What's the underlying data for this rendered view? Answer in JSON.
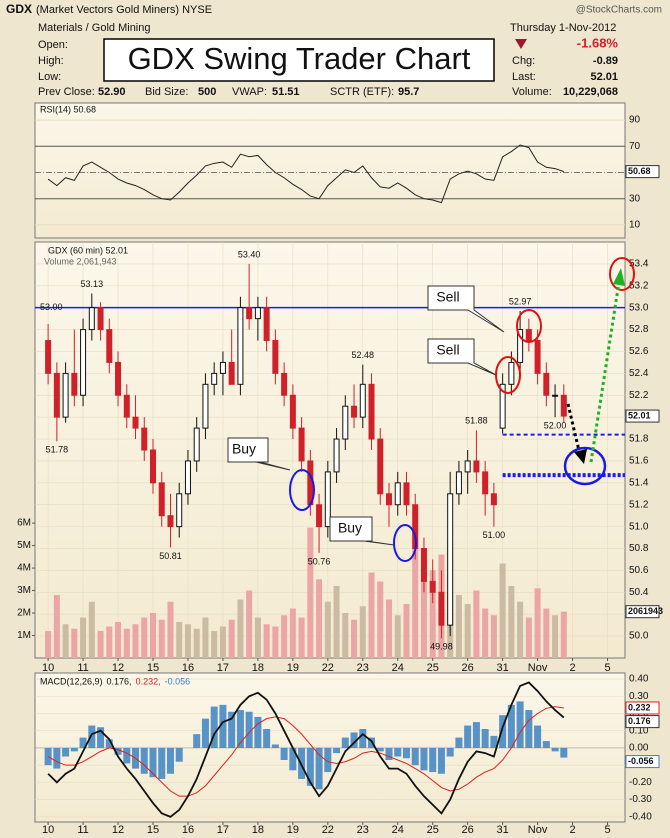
{
  "chart_data": {
    "type": "candlestick",
    "title": "GDX Swing Trader Chart",
    "header": {
      "ticker": "GDX",
      "name": "(Market Vectors Gold Miners) NYSE",
      "source": "@StockCharts.com",
      "sector": "Materials / Gold Mining",
      "date": "Thursday  1-Nov-2012",
      "change_pct": "-1.68%",
      "left_fields": [
        "Open:",
        "High:",
        "Low:"
      ],
      "right_fields": [
        [
          "Chg:",
          "-0.89"
        ],
        [
          "Last:",
          "52.01"
        ],
        [
          "Volume:",
          "10,229,068"
        ]
      ],
      "bottom_fields": [
        [
          "Prev Close:",
          "52.90"
        ],
        [
          "Bid Size:",
          "500"
        ],
        [
          "VWAP:",
          "51.51"
        ],
        [
          "SCTR (ETF):",
          "95.7"
        ]
      ]
    },
    "price_legend": "GDX (60 min) 52.01",
    "x": [
      0,
      1,
      2,
      3,
      4,
      5,
      6,
      7,
      8,
      9,
      10,
      11,
      12,
      13,
      14,
      15,
      16,
      17,
      18,
      19,
      20,
      21,
      22,
      23,
      24,
      25,
      26,
      27,
      28,
      29,
      30,
      31,
      32,
      33,
      34,
      35,
      36,
      37,
      38,
      39,
      40,
      41,
      42,
      43,
      44,
      45,
      46,
      47,
      48,
      49,
      50,
      51,
      52,
      53,
      54,
      55,
      56,
      57,
      58,
      59
    ],
    "xlim": [
      -1.5,
      66
    ],
    "xticks": [
      {
        "value": 0,
        "label": "10"
      },
      {
        "value": 4,
        "label": "11"
      },
      {
        "value": 8,
        "label": "12"
      },
      {
        "value": 12,
        "label": "15"
      },
      {
        "value": 16,
        "label": "16"
      },
      {
        "value": 20,
        "label": "17"
      },
      {
        "value": 24,
        "label": "18"
      },
      {
        "value": 28,
        "label": "19"
      },
      {
        "value": 32,
        "label": "22"
      },
      {
        "value": 36,
        "label": "23"
      },
      {
        "value": 40,
        "label": "24"
      },
      {
        "value": 44,
        "label": "25"
      },
      {
        "value": 48,
        "label": "26"
      },
      {
        "value": 52,
        "label": "31"
      },
      {
        "value": 56,
        "label": "Nov"
      },
      {
        "value": 60,
        "label": "2"
      },
      {
        "value": 64,
        "label": "5"
      }
    ],
    "open": [
      52.7,
      52.4,
      52.0,
      52.4,
      52.2,
      52.8,
      53.0,
      52.8,
      52.5,
      52.2,
      52.0,
      51.9,
      51.7,
      51.4,
      51.1,
      51.0,
      51.3,
      51.6,
      51.9,
      52.3,
      52.4,
      52.5,
      52.3,
      53.0,
      52.9,
      53.0,
      52.7,
      52.4,
      52.2,
      51.9,
      51.6,
      51.2,
      51.0,
      51.5,
      51.8,
      52.1,
      52.0,
      52.3,
      51.8,
      51.3,
      51.2,
      51.4,
      51.2,
      50.8,
      50.5,
      50.4,
      50.1,
      51.3,
      51.5,
      51.6,
      51.5,
      51.3,
      51.9,
      52.3,
      52.5,
      52.8,
      52.7,
      52.4,
      52.2,
      52.2
    ],
    "high": [
      52.85,
      52.5,
      52.5,
      52.8,
      52.9,
      53.13,
      53.05,
      52.9,
      52.6,
      52.3,
      52.2,
      52.0,
      51.8,
      51.5,
      51.3,
      51.4,
      51.7,
      52.0,
      52.4,
      52.5,
      52.6,
      52.8,
      53.1,
      53.4,
      53.1,
      53.1,
      52.8,
      52.5,
      52.3,
      52.0,
      51.7,
      51.3,
      51.6,
      51.9,
      52.2,
      52.3,
      52.48,
      52.4,
      51.9,
      51.4,
      51.5,
      51.5,
      51.3,
      50.9,
      50.7,
      50.6,
      51.5,
      51.6,
      51.7,
      51.88,
      51.6,
      51.4,
      52.4,
      52.6,
      52.97,
      52.9,
      52.8,
      52.5,
      52.3,
      52.3
    ],
    "low": [
      52.3,
      51.78,
      51.95,
      52.1,
      52.1,
      52.7,
      52.7,
      52.4,
      52.1,
      51.9,
      51.8,
      51.6,
      51.3,
      51.0,
      50.81,
      50.9,
      51.2,
      51.5,
      51.8,
      52.2,
      52.2,
      52.3,
      52.2,
      52.8,
      52.7,
      52.6,
      52.3,
      52.1,
      51.8,
      51.5,
      51.1,
      50.76,
      50.9,
      51.4,
      51.7,
      51.9,
      51.9,
      51.7,
      51.2,
      51.0,
      51.1,
      51.1,
      50.7,
      50.4,
      50.3,
      49.98,
      50.0,
      51.2,
      51.3,
      51.4,
      51.1,
      51.0,
      51.85,
      52.2,
      52.4,
      52.6,
      52.3,
      52.1,
      52.0,
      51.95
    ],
    "close": [
      52.4,
      52.0,
      52.4,
      52.2,
      52.8,
      53.0,
      52.8,
      52.5,
      52.2,
      52.0,
      51.9,
      51.7,
      51.4,
      51.1,
      51.0,
      51.3,
      51.6,
      51.9,
      52.3,
      52.4,
      52.5,
      52.3,
      53.0,
      52.9,
      53.0,
      52.7,
      52.4,
      52.2,
      51.9,
      51.6,
      51.2,
      51.0,
      51.5,
      51.8,
      52.1,
      52.0,
      52.3,
      51.8,
      51.3,
      51.2,
      51.4,
      51.2,
      50.8,
      50.5,
      50.4,
      50.1,
      51.3,
      51.5,
      51.6,
      51.5,
      51.3,
      51.2,
      52.3,
      52.5,
      52.8,
      52.7,
      52.4,
      52.2,
      52.2,
      52.01
    ],
    "colors": {
      "up": "#111111",
      "down": "#d0202a"
    },
    "ylim": [
      49.8,
      53.6
    ],
    "yticks": [
      {
        "value": 50,
        "label": "50.0"
      },
      {
        "value": 50.2,
        "label": "50.2"
      },
      {
        "value": 50.4,
        "label": "50.4"
      },
      {
        "value": 50.6,
        "label": "50.6"
      },
      {
        "value": 50.8,
        "label": "50.8"
      },
      {
        "value": 51,
        "label": "51.0"
      },
      {
        "value": 51.2,
        "label": "51.2"
      },
      {
        "value": 51.4,
        "label": "51.4"
      },
      {
        "value": 51.6,
        "label": "51.6"
      },
      {
        "value": 51.8,
        "label": "51.8"
      },
      {
        "value": 52,
        "label": "52.0"
      },
      {
        "value": 52.2,
        "label": "52.2"
      },
      {
        "value": 52.4,
        "label": "52.4"
      },
      {
        "value": 52.6,
        "label": "52.6"
      },
      {
        "value": 52.8,
        "label": "52.8"
      },
      {
        "value": 53,
        "label": "53.0"
      },
      {
        "value": 53.2,
        "label": "53.2"
      },
      {
        "value": 53.4,
        "label": "53.4"
      }
    ],
    "grid": true,
    "resistance": {
      "value": 53,
      "label": "53.00",
      "color": "#1a1aff"
    },
    "support_lines": [
      {
        "value": 51.84,
        "from": 52,
        "style": "dashed",
        "color": "#1a1aff"
      },
      {
        "value": 51.47,
        "from": 52,
        "style": "dotted",
        "color": "#1a1aff"
      }
    ],
    "price_labels": [
      {
        "x": 5,
        "value": 53.13,
        "position": "above"
      },
      {
        "x": 23,
        "value": 53.4,
        "label": "53.40",
        "position": "above"
      },
      {
        "x": 1,
        "value": 51.78,
        "position": "below"
      },
      {
        "x": 14,
        "value": 50.81,
        "position": "below"
      },
      {
        "x": 36,
        "value": 52.48,
        "position": "above"
      },
      {
        "x": 31,
        "value": 50.76,
        "position": "below"
      },
      {
        "x": 45,
        "value": 49.98,
        "position": "below"
      },
      {
        "x": 49,
        "value": 51.88,
        "position": "above"
      },
      {
        "x": 51,
        "value": 51,
        "label": "51.00",
        "position": "below"
      },
      {
        "x": 58,
        "value": 52,
        "label": "52.00",
        "position": "below"
      },
      {
        "x": 54,
        "value": 52.97,
        "position": "above"
      }
    ],
    "annotations": [
      "Buy",
      "Buy",
      "Sell",
      "Sell"
    ],
    "volume": {
      "legend": "Volume 2,061,943",
      "last_label": "2061943",
      "up_color": "#cbbba3",
      "down_color": "#eba5a5",
      "values": [
        1.2,
        2.8,
        1.5,
        1.3,
        1.8,
        2.5,
        1.2,
        1.4,
        1.6,
        1.3,
        1.5,
        1.8,
        2.0,
        1.7,
        2.5,
        1.6,
        1.5,
        1.3,
        1.8,
        1.2,
        1.4,
        1.7,
        2.6,
        3.0,
        1.8,
        1.5,
        1.4,
        1.9,
        2.2,
        1.8,
        5.8,
        3.5,
        2.5,
        3.2,
        2.0,
        1.7,
        2.3,
        3.8,
        3.4,
        2.6,
        1.9,
        2.4,
        5.8,
        4.3,
        3.9,
        4.6,
        5.2,
        2.8,
        2.4,
        3.0,
        2.2,
        1.9,
        4.2,
        3.2,
        2.5,
        1.8,
        3.1,
        2.2,
        1.9,
        2.06
      ],
      "ylim": [
        0,
        18.5
      ],
      "yticks": [
        {
          "value": 1,
          "label": "1M"
        },
        {
          "value": 2,
          "label": "2M"
        },
        {
          "value": 3,
          "label": "3M"
        },
        {
          "value": 4,
          "label": "4M"
        },
        {
          "value": 5,
          "label": "5M"
        },
        {
          "value": 6,
          "label": "6M"
        }
      ]
    },
    "rsi": {
      "legend": "RSI(14) 50.68",
      "color": "#222222",
      "values": [
        45,
        40,
        46,
        44,
        55,
        58,
        54,
        50,
        45,
        42,
        40,
        37,
        33,
        30,
        29,
        35,
        42,
        48,
        55,
        57,
        58,
        54,
        64,
        62,
        63,
        56,
        50,
        46,
        41,
        37,
        32,
        30,
        40,
        46,
        52,
        50,
        55,
        46,
        39,
        38,
        42,
        38,
        33,
        30,
        29,
        27,
        45,
        49,
        51,
        49,
        45,
        44,
        62,
        66,
        71,
        69,
        58,
        54,
        53,
        50.68
      ],
      "ylim": [
        0,
        100
      ],
      "yticks": [
        10,
        30,
        50,
        70,
        90
      ]
    },
    "macd": {
      "legend": [
        "MACD(12,26,9)",
        "0.176,",
        "0.232,",
        "-0.056"
      ],
      "colors": [
        "#111111",
        "#e0201e",
        "#3c82c4"
      ],
      "macd": [
        -0.15,
        -0.2,
        -0.15,
        -0.12,
        -0.02,
        0.08,
        0.1,
        0.05,
        -0.05,
        -0.12,
        -0.18,
        -0.25,
        -0.32,
        -0.38,
        -0.4,
        -0.36,
        -0.28,
        -0.18,
        -0.05,
        0.08,
        0.15,
        0.17,
        0.25,
        0.3,
        0.32,
        0.28,
        0.2,
        0.1,
        0.0,
        -0.1,
        -0.2,
        -0.28,
        -0.22,
        -0.12,
        -0.02,
        0.03,
        0.08,
        0.04,
        -0.05,
        -0.12,
        -0.12,
        -0.15,
        -0.22,
        -0.28,
        -0.33,
        -0.38,
        -0.3,
        -0.18,
        -0.08,
        -0.02,
        -0.03,
        -0.05,
        0.12,
        0.25,
        0.36,
        0.38,
        0.33,
        0.27,
        0.22,
        0.176
      ],
      "signal": [
        -0.05,
        -0.08,
        -0.1,
        -0.1,
        -0.08,
        -0.05,
        -0.02,
        0.0,
        -0.01,
        -0.03,
        -0.06,
        -0.1,
        -0.15,
        -0.2,
        -0.25,
        -0.28,
        -0.28,
        -0.26,
        -0.22,
        -0.16,
        -0.1,
        -0.04,
        0.03,
        0.09,
        0.14,
        0.17,
        0.18,
        0.17,
        0.13,
        0.08,
        0.02,
        -0.04,
        -0.08,
        -0.09,
        -0.08,
        -0.06,
        -0.03,
        -0.02,
        -0.03,
        -0.05,
        -0.07,
        -0.09,
        -0.12,
        -0.15,
        -0.19,
        -0.23,
        -0.25,
        -0.24,
        -0.21,
        -0.17,
        -0.14,
        -0.12,
        -0.07,
        0.0,
        0.09,
        0.16,
        0.2,
        0.23,
        0.24,
        0.232
      ],
      "histogram": [
        -0.1,
        -0.12,
        -0.05,
        -0.02,
        0.06,
        0.13,
        0.12,
        0.05,
        -0.04,
        -0.09,
        -0.12,
        -0.15,
        -0.17,
        -0.18,
        -0.15,
        -0.08,
        0.0,
        0.08,
        0.17,
        0.24,
        0.25,
        0.21,
        0.22,
        0.21,
        0.18,
        0.11,
        0.02,
        -0.07,
        -0.13,
        -0.18,
        -0.22,
        -0.24,
        -0.14,
        -0.03,
        0.06,
        0.09,
        0.11,
        0.06,
        -0.02,
        -0.07,
        -0.05,
        -0.06,
        -0.1,
        -0.13,
        -0.14,
        -0.15,
        -0.05,
        0.06,
        0.13,
        0.15,
        0.11,
        0.07,
        0.19,
        0.25,
        0.27,
        0.22,
        0.13,
        0.04,
        -0.02,
        -0.056
      ],
      "ylim": [
        -0.43,
        0.435
      ],
      "yticks": [
        {
          "value": 0.4,
          "label": "0.40"
        },
        {
          "value": 0.3,
          "label": "0.30"
        },
        {
          "value": 0.2,
          "label": "0.20"
        },
        {
          "value": 0.1,
          "label": "0.10"
        },
        {
          "value": 0,
          "label": "0.00"
        },
        {
          "value": -0.1,
          "label": "-0.10"
        },
        {
          "value": -0.2,
          "label": "-0.20"
        },
        {
          "value": -0.3,
          "label": "-0.30"
        },
        {
          "value": -0.4,
          "label": "-0.40"
        }
      ]
    }
  }
}
